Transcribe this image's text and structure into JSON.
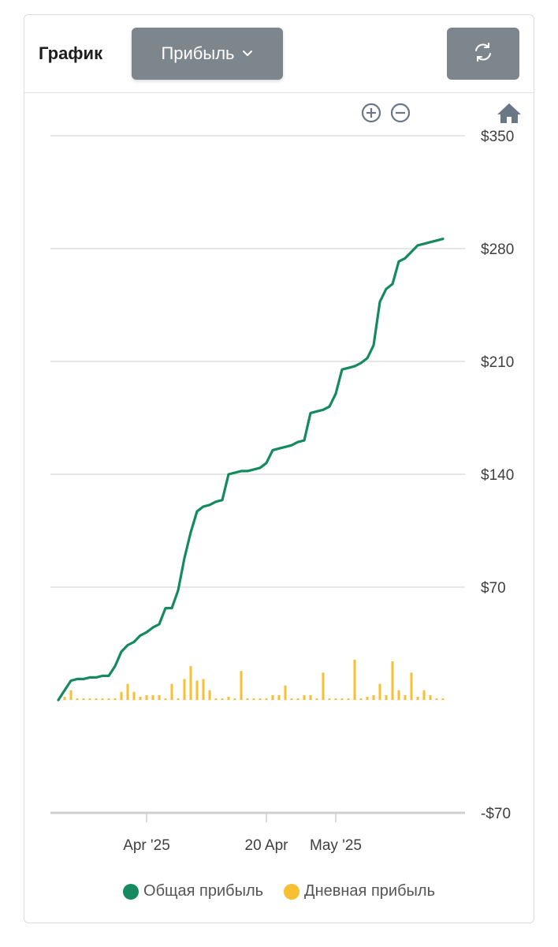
{
  "header": {
    "title": "График",
    "dropdown_label": "Прибыль"
  },
  "icons": {
    "zoom_in": "zoom-in-icon",
    "zoom_out": "zoom-out-icon",
    "home": "home-icon",
    "refresh": "refresh-icon",
    "chevron": "chevron-down-icon"
  },
  "colors": {
    "total": "#148a5e",
    "daily": "#f7bf32",
    "button_bg": "#7d858d",
    "grid": "#dddddd"
  },
  "chart_data": {
    "type": "line",
    "ylim": [
      -70,
      350
    ],
    "xlim": [
      0,
      63
    ],
    "grid": true,
    "legend_position": "bottom",
    "y_ticks": [
      {
        "value": 350,
        "label": "$350"
      },
      {
        "value": 280,
        "label": "$280"
      },
      {
        "value": 210,
        "label": "$210"
      },
      {
        "value": 140,
        "label": "$140"
      },
      {
        "value": 70,
        "label": "$70"
      },
      {
        "value": -70,
        "label": "-$70"
      }
    ],
    "x_ticks": [
      {
        "x": 14,
        "label": "Apr '25"
      },
      {
        "x": 33,
        "label": "20 Apr"
      },
      {
        "x": 44,
        "label": "May '25"
      }
    ],
    "series": [
      {
        "name": "Общая прибыль",
        "type": "line",
        "x": [
          0,
          1,
          2,
          3,
          4,
          5,
          6,
          7,
          8,
          9,
          10,
          11,
          12,
          13,
          14,
          15,
          16,
          17,
          18,
          19,
          20,
          21,
          22,
          23,
          24,
          25,
          26,
          27,
          28,
          29,
          30,
          31,
          32,
          33,
          34,
          35,
          36,
          37,
          38,
          39,
          40,
          41,
          42,
          43,
          44,
          45,
          46,
          47,
          48,
          49,
          50,
          51,
          52,
          53,
          54,
          55,
          56,
          57,
          58,
          59,
          60,
          61,
          62
        ],
        "values": [
          0,
          6,
          12,
          13,
          13,
          14,
          14,
          15,
          15,
          21,
          30,
          34,
          36,
          40,
          42,
          45,
          47,
          57,
          57,
          68,
          88,
          104,
          117,
          120,
          121,
          123,
          124,
          140,
          141,
          142,
          142,
          143,
          144,
          147,
          155,
          156,
          157,
          158,
          160,
          161,
          178,
          179,
          180,
          182,
          190,
          205,
          206,
          207,
          209,
          212,
          220,
          247,
          255,
          258,
          272,
          274,
          278,
          282,
          283,
          284,
          285,
          286,
          287
        ],
        "visible_points": 62
      },
      {
        "name": "Дневная прибыль",
        "type": "bar",
        "x": [
          1,
          2,
          3,
          4,
          5,
          6,
          7,
          8,
          9,
          10,
          11,
          12,
          13,
          14,
          15,
          16,
          17,
          18,
          19,
          20,
          21,
          22,
          23,
          24,
          25,
          26,
          27,
          28,
          29,
          30,
          31,
          32,
          33,
          34,
          35,
          36,
          37,
          38,
          39,
          40,
          41,
          42,
          43,
          44,
          45,
          46,
          47,
          48,
          49,
          50,
          51,
          52,
          53,
          54,
          55,
          56,
          57,
          58,
          59,
          60,
          61
        ],
        "values": [
          2,
          6,
          1,
          1,
          1,
          1,
          1,
          1,
          1,
          5,
          10,
          5,
          2,
          3,
          3,
          3,
          1,
          10,
          1,
          13,
          21,
          12,
          13,
          6,
          1,
          1,
          2,
          1,
          18,
          1,
          1,
          1,
          1,
          3,
          3,
          9,
          1,
          1,
          3,
          3,
          1,
          17,
          1,
          1,
          1,
          1,
          25,
          1,
          2,
          3,
          10,
          3,
          24,
          6,
          3,
          17,
          2,
          6,
          3,
          1,
          1
        ]
      }
    ]
  },
  "legend": {
    "total": "Общая прибыль",
    "daily": "Дневная прибыль"
  }
}
